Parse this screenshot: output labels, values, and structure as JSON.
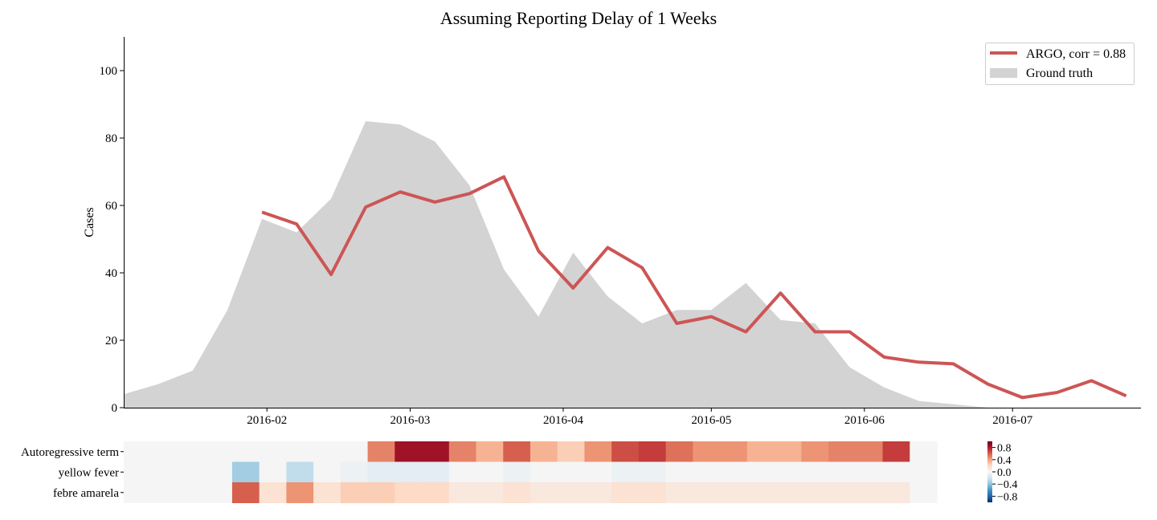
{
  "chart_data": [
    {
      "type": "line",
      "title": "Assuming Reporting Delay of 1 Weeks",
      "xlabel": "",
      "ylabel": "Cases",
      "ylim": [
        0,
        110
      ],
      "yticks": [
        0,
        20,
        40,
        60,
        80,
        100
      ],
      "xlim": [
        "2016-01-03",
        "2016-07-27"
      ],
      "xticks": [
        "2016-02",
        "2016-03",
        "2016-04",
        "2016-05",
        "2016-06",
        "2016-07"
      ],
      "grid": false,
      "legend_position": "top-right",
      "series": [
        {
          "name": "ARGO, corr = 0.88",
          "kind": "line",
          "color": "#cd5555",
          "x": [
            "2016-01-31",
            "2016-02-07",
            "2016-02-14",
            "2016-02-21",
            "2016-02-28",
            "2016-03-06",
            "2016-03-13",
            "2016-03-20",
            "2016-03-27",
            "2016-04-03",
            "2016-04-10",
            "2016-04-17",
            "2016-04-24",
            "2016-05-01",
            "2016-05-08",
            "2016-05-15",
            "2016-05-22",
            "2016-05-29",
            "2016-06-05",
            "2016-06-12",
            "2016-06-19",
            "2016-06-26",
            "2016-07-03",
            "2016-07-10",
            "2016-07-17",
            "2016-07-24"
          ],
          "values": [
            58,
            54.5,
            39.5,
            59.5,
            64,
            61,
            63.5,
            68.5,
            46.5,
            35.5,
            47.5,
            41.5,
            25,
            27,
            22.5,
            34,
            22.5,
            22.5,
            15,
            13.5,
            13,
            7,
            3,
            4.5,
            8,
            3.5
          ]
        },
        {
          "name": "Ground truth",
          "kind": "area",
          "color": "#d3d3d3",
          "x": [
            "2016-01-03",
            "2016-01-10",
            "2016-01-17",
            "2016-01-24",
            "2016-01-31",
            "2016-02-07",
            "2016-02-14",
            "2016-02-21",
            "2016-02-28",
            "2016-03-06",
            "2016-03-13",
            "2016-03-20",
            "2016-03-27",
            "2016-04-03",
            "2016-04-10",
            "2016-04-17",
            "2016-04-24",
            "2016-05-01",
            "2016-05-08",
            "2016-05-15",
            "2016-05-22",
            "2016-05-29",
            "2016-06-05",
            "2016-06-12",
            "2016-06-19",
            "2016-06-26",
            "2016-07-03",
            "2016-07-10",
            "2016-07-17",
            "2016-07-24"
          ],
          "values": [
            4,
            7,
            11,
            29,
            56,
            52,
            62,
            85,
            84,
            79,
            66,
            41,
            27,
            46,
            33,
            25,
            29,
            29,
            37,
            26,
            25,
            12,
            6,
            2,
            1,
            0,
            0,
            0,
            0,
            0
          ]
        }
      ]
    },
    {
      "type": "heatmap",
      "rows": [
        "Autoregressive term",
        "yellow fever",
        "febre amarela"
      ],
      "columns": 30,
      "colorbar": {
        "ticks": [
          "0.8",
          "0.4",
          "0.0",
          "−0.4",
          "−0.8"
        ],
        "range": [
          -1,
          1
        ],
        "colormap": "RdBu_r"
      },
      "values": [
        [
          0,
          0,
          0,
          0,
          0,
          0,
          0,
          0,
          0,
          0.5,
          0.85,
          0.85,
          0.5,
          0.35,
          0.6,
          0.35,
          0.25,
          0.45,
          0.65,
          0.7,
          0.55,
          0.45,
          0.45,
          0.35,
          0.35,
          0.45,
          0.5,
          0.5,
          0.7,
          0
        ],
        [
          0,
          0,
          0,
          0,
          -0.35,
          0,
          -0.25,
          0,
          -0.05,
          -0.1,
          -0.1,
          -0.1,
          0,
          0,
          -0.05,
          0,
          0,
          0,
          -0.05,
          -0.05,
          0,
          0,
          0,
          0,
          0,
          0,
          0,
          0,
          0,
          0
        ],
        [
          0,
          0,
          0,
          0,
          0.6,
          0.15,
          0.45,
          0.15,
          0.25,
          0.25,
          0.2,
          0.2,
          0.1,
          0.1,
          0.15,
          0.1,
          0.1,
          0.1,
          0.15,
          0.15,
          0.1,
          0.1,
          0.1,
          0.1,
          0.1,
          0.1,
          0.1,
          0.1,
          0.1,
          0
        ]
      ]
    }
  ],
  "colors": {
    "argo_line": "#cd5555",
    "ground_truth": "#d3d3d3"
  }
}
